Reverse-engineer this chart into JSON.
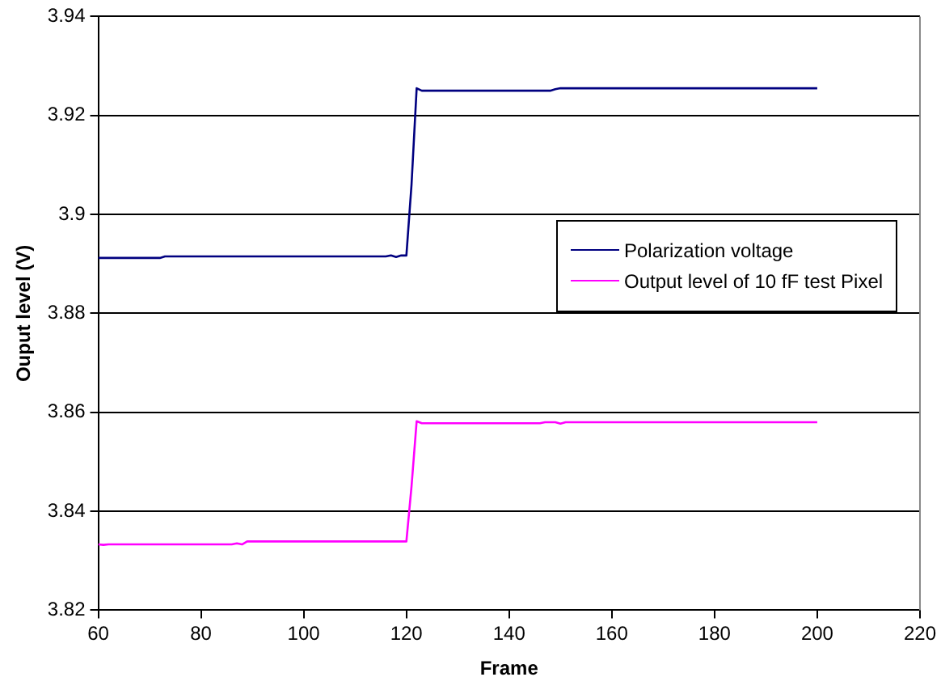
{
  "chart_data": {
    "type": "line",
    "xlabel": "Frame",
    "ylabel": "Ouput level (V)",
    "xlim": [
      60,
      220
    ],
    "xticks": [
      60,
      80,
      100,
      120,
      140,
      160,
      180,
      200,
      220
    ],
    "ylim": [
      3.82,
      3.94
    ],
    "yticks": [
      3.82,
      3.84,
      3.86,
      3.88,
      3.9,
      3.92,
      3.94
    ],
    "grid": "y",
    "legend": "right",
    "marker": "none",
    "line_style": "solid",
    "series": [
      {
        "name": "Polarization voltage",
        "color": "#000080",
        "x": [
          60,
          72,
          73,
          116,
          117,
          118,
          119,
          120,
          121,
          122,
          123,
          148,
          149,
          150,
          200
        ],
        "values": [
          3.8912,
          3.8912,
          3.8915,
          3.8915,
          3.8917,
          3.8914,
          3.8917,
          3.8917,
          3.906,
          3.9255,
          3.925,
          3.925,
          3.9253,
          3.9255,
          3.9255
        ]
      },
      {
        "name": "Output level of 10 fF test Pixel",
        "color": "#ff00ff",
        "x": [
          60,
          61,
          62,
          86,
          87,
          88,
          89,
          120,
          121,
          122,
          123,
          146,
          147,
          149,
          150,
          151,
          200
        ],
        "values": [
          3.8333,
          3.8332,
          3.8333,
          3.8333,
          3.8335,
          3.8333,
          3.8339,
          3.8339,
          3.845,
          3.8582,
          3.8578,
          3.8578,
          3.858,
          3.858,
          3.8577,
          3.858,
          3.858
        ]
      }
    ]
  }
}
